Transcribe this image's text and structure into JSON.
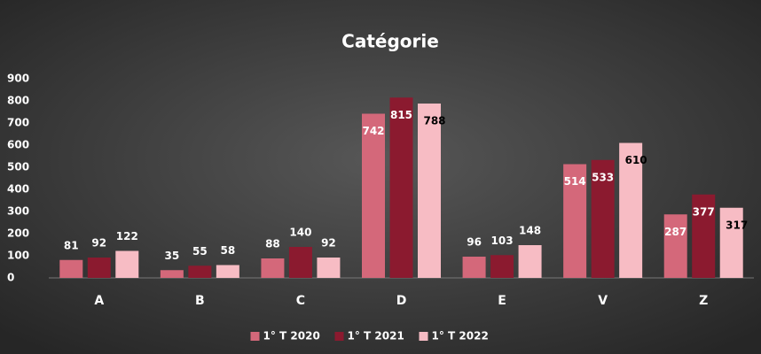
{
  "chart_data": {
    "type": "bar",
    "title": "Catégorie",
    "categories": [
      "A",
      "B",
      "C",
      "D",
      "E",
      "V",
      "Z"
    ],
    "series": [
      {
        "name": "1° T 2020",
        "color": "#d4687a",
        "values": [
          81,
          35,
          88,
          742,
          96,
          514,
          287
        ]
      },
      {
        "name": "1° T 2021",
        "color": "#8b1a2f",
        "values": [
          92,
          55,
          140,
          815,
          103,
          533,
          377
        ]
      },
      {
        "name": "1° T 2022",
        "color": "#f7bcc4",
        "values": [
          122,
          58,
          92,
          788,
          148,
          610,
          317
        ]
      }
    ],
    "ylim": [
      0,
      900
    ],
    "yticks": [
      0,
      100,
      200,
      300,
      400,
      500,
      600,
      700,
      800,
      900
    ],
    "grid": false,
    "legend": "bottom"
  }
}
